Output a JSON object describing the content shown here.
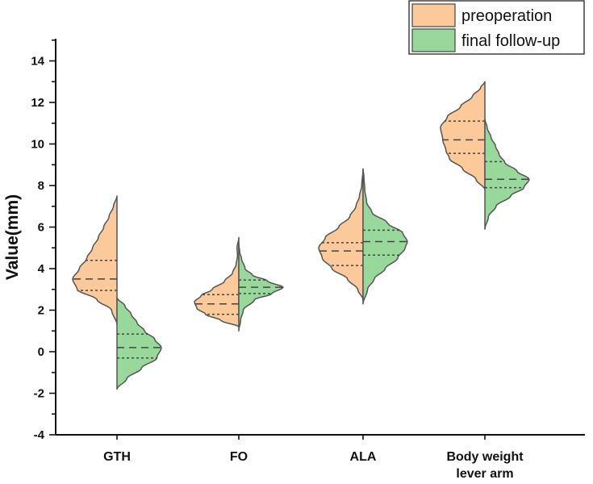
{
  "chart_data": {
    "type": "violin",
    "title": "",
    "xlabel": "",
    "ylabel": "Value(mm)",
    "ylim": [
      -4,
      15
    ],
    "yticks": [
      -4,
      -2,
      0,
      2,
      4,
      6,
      8,
      10,
      12,
      14
    ],
    "ytick_labels": [
      "-4",
      "-2",
      "0",
      "2",
      "4",
      "6",
      "8",
      "10",
      "12",
      "14"
    ],
    "categories": [
      {
        "lines": [
          "GTH"
        ]
      },
      {
        "lines": [
          "FO"
        ]
      },
      {
        "lines": [
          "ALA"
        ]
      },
      {
        "lines": [
          "Body weight",
          "lever arm"
        ]
      }
    ],
    "legend_position": "top-right",
    "series": [
      {
        "name": "preoperation",
        "color": "#fbc99a",
        "side": "left",
        "groups": [
          {
            "min": 1.3,
            "max": 7.5,
            "q1": 2.95,
            "median": 3.5,
            "q3": 4.4,
            "profile": [
              [
                1.3,
                0
              ],
              [
                2.0,
                0.12
              ],
              [
                2.5,
                0.45
              ],
              [
                3.0,
                0.9
              ],
              [
                3.5,
                1.0
              ],
              [
                4.0,
                0.85
              ],
              [
                4.5,
                0.68
              ],
              [
                5.0,
                0.55
              ],
              [
                5.5,
                0.42
              ],
              [
                6.0,
                0.3
              ],
              [
                6.5,
                0.18
              ],
              [
                7.0,
                0.08
              ],
              [
                7.5,
                0
              ]
            ]
          },
          {
            "min": 1.2,
            "max": 5.5,
            "q1": 1.8,
            "median": 2.3,
            "q3": 2.75,
            "profile": [
              [
                1.2,
                0
              ],
              [
                1.5,
                0.4
              ],
              [
                1.8,
                0.75
              ],
              [
                2.1,
                0.95
              ],
              [
                2.4,
                1.0
              ],
              [
                2.7,
                0.85
              ],
              [
                3.0,
                0.6
              ],
              [
                3.4,
                0.32
              ],
              [
                3.8,
                0.14
              ],
              [
                4.2,
                0.06
              ],
              [
                4.6,
                0.03
              ],
              [
                5.0,
                0.04
              ],
              [
                5.5,
                0
              ]
            ]
          },
          {
            "min": 2.5,
            "max": 8.8,
            "q1": 4.15,
            "median": 4.85,
            "q3": 5.25,
            "profile": [
              [
                2.5,
                0
              ],
              [
                3.0,
                0.12
              ],
              [
                3.5,
                0.35
              ],
              [
                4.0,
                0.7
              ],
              [
                4.5,
                0.92
              ],
              [
                5.0,
                1.0
              ],
              [
                5.5,
                0.85
              ],
              [
                6.0,
                0.55
              ],
              [
                6.5,
                0.3
              ],
              [
                7.0,
                0.16
              ],
              [
                7.5,
                0.08
              ],
              [
                8.0,
                0.03
              ],
              [
                8.8,
                0
              ]
            ]
          },
          {
            "min": 7.8,
            "max": 13.0,
            "q1": 9.55,
            "median": 10.2,
            "q3": 11.1,
            "profile": [
              [
                7.8,
                0
              ],
              [
                8.3,
                0.2
              ],
              [
                8.8,
                0.5
              ],
              [
                9.3,
                0.8
              ],
              [
                9.7,
                0.88
              ],
              [
                10.2,
                0.95
              ],
              [
                10.8,
                1.0
              ],
              [
                11.3,
                0.85
              ],
              [
                11.8,
                0.55
              ],
              [
                12.3,
                0.28
              ],
              [
                12.7,
                0.1
              ],
              [
                13.0,
                0
              ]
            ]
          }
        ]
      },
      {
        "name": "final follow-up",
        "color": "#98d89a",
        "side": "right",
        "groups": [
          {
            "min": -1.8,
            "max": 2.6,
            "q1": -0.3,
            "median": 0.2,
            "q3": 0.85,
            "profile": [
              [
                -1.8,
                0
              ],
              [
                -1.3,
                0.22
              ],
              [
                -0.8,
                0.55
              ],
              [
                -0.3,
                0.9
              ],
              [
                0.2,
                1.0
              ],
              [
                0.6,
                0.85
              ],
              [
                1.0,
                0.62
              ],
              [
                1.4,
                0.45
              ],
              [
                1.8,
                0.32
              ],
              [
                2.2,
                0.18
              ],
              [
                2.6,
                0
              ]
            ]
          },
          {
            "min": 1.0,
            "max": 5.2,
            "q1": 2.8,
            "median": 3.1,
            "q3": 3.45,
            "profile": [
              [
                1.0,
                0
              ],
              [
                1.5,
                0.04
              ],
              [
                2.0,
                0.1
              ],
              [
                2.5,
                0.35
              ],
              [
                2.8,
                0.75
              ],
              [
                3.1,
                1.0
              ],
              [
                3.4,
                0.65
              ],
              [
                3.7,
                0.3
              ],
              [
                4.0,
                0.14
              ],
              [
                4.5,
                0.06
              ],
              [
                4.8,
                0.02
              ],
              [
                5.2,
                0
              ]
            ]
          },
          {
            "min": 2.3,
            "max": 8.8,
            "q1": 4.65,
            "median": 5.3,
            "q3": 5.85,
            "profile": [
              [
                2.3,
                0
              ],
              [
                3.0,
                0.1
              ],
              [
                3.5,
                0.25
              ],
              [
                4.0,
                0.5
              ],
              [
                4.5,
                0.78
              ],
              [
                5.0,
                0.95
              ],
              [
                5.3,
                1.0
              ],
              [
                5.7,
                0.9
              ],
              [
                6.2,
                0.55
              ],
              [
                6.7,
                0.2
              ],
              [
                7.2,
                0.08
              ],
              [
                7.8,
                0.04
              ],
              [
                8.4,
                0.02
              ],
              [
                8.8,
                0
              ]
            ]
          },
          {
            "min": 5.9,
            "max": 11.2,
            "q1": 7.9,
            "median": 8.3,
            "q3": 9.15,
            "profile": [
              [
                5.9,
                0
              ],
              [
                6.5,
                0.08
              ],
              [
                7.0,
                0.25
              ],
              [
                7.5,
                0.58
              ],
              [
                7.9,
                0.88
              ],
              [
                8.3,
                1.0
              ],
              [
                8.7,
                0.72
              ],
              [
                9.1,
                0.45
              ],
              [
                9.5,
                0.32
              ],
              [
                9.9,
                0.24
              ],
              [
                10.3,
                0.14
              ],
              [
                10.8,
                0.05
              ],
              [
                11.2,
                0
              ]
            ]
          }
        ]
      }
    ]
  }
}
